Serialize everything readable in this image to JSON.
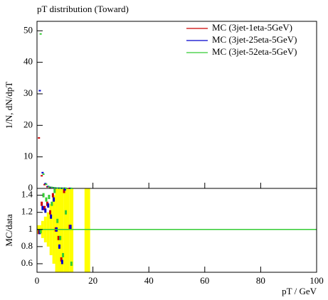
{
  "chart_data": {
    "type": "ratio-line",
    "title": "pT distribution (Toward)",
    "ylabel": "1/N, dN/dpT",
    "ratio_ylabel": "MC/data",
    "xlabel": "pT / GeV",
    "xlim": [
      0,
      100
    ],
    "xticks": [
      0,
      20,
      40,
      60,
      80,
      100
    ],
    "ylim": [
      0,
      53
    ],
    "yticks": [
      0,
      10,
      20,
      30,
      40,
      50
    ],
    "ratio_ylim": [
      0.5,
      1.48
    ],
    "ratio_yticks": [
      0.6,
      0.8,
      1,
      1.2,
      1.4
    ],
    "ratio_reference": 1,
    "legend": "upper right",
    "x": [
      1,
      2,
      3,
      4,
      5,
      6,
      7,
      8,
      9,
      10,
      12
    ],
    "series": [
      {
        "name": "MC (3jet-1eta-5GeV)",
        "color": "#cc0000",
        "values": [
          16,
          4,
          1.2,
          0.5,
          0.3,
          0.2,
          0.1,
          0.08,
          0.05,
          0.04,
          0.02
        ],
        "ratio": [
          0.97,
          1.3,
          1.25,
          1.3,
          1.2,
          1.4,
          1.0,
          0.9,
          0.65,
          1.45,
          1.03
        ]
      },
      {
        "name": "MC (3jet-25eta-5GeV)",
        "color": "#0000cc",
        "values": [
          31,
          5,
          1.5,
          0.6,
          0.3,
          0.2,
          0.1,
          0.08,
          0.05,
          0.04,
          0.02
        ],
        "ratio": [
          0.97,
          1.25,
          1.22,
          1.28,
          1.15,
          1.35,
          1.0,
          0.8,
          0.62,
          1.48,
          1.03
        ]
      },
      {
        "name": "MC (3jet-52eta-5GeV)",
        "color": "#33cc33",
        "values": [
          49,
          4.5,
          1.3,
          0.5,
          0.3,
          0.2,
          0.1,
          0.08,
          0.05,
          0.04,
          0.02
        ],
        "ratio": [
          0.98,
          1.4,
          1.35,
          1.38,
          1.3,
          1.45,
          1.1,
          0.9,
          0.7,
          1.2,
          0.6
        ]
      }
    ],
    "band": {
      "color": "#ffff00",
      "x0": [
        0,
        1.5,
        2.5,
        3.5,
        4.5,
        5.5,
        6.5,
        7.5,
        9.5,
        11.5,
        17
      ],
      "x1": [
        1.5,
        2.5,
        3.5,
        4.5,
        5.5,
        6.5,
        7.5,
        9.5,
        11.5,
        13,
        19
      ],
      "lower": [
        0.95,
        0.9,
        0.85,
        0.8,
        0.7,
        0.6,
        0.4,
        0,
        0,
        0,
        0
      ],
      "upper": [
        1.05,
        1.1,
        1.15,
        1.2,
        1.3,
        1.4,
        1.6,
        2,
        2,
        2,
        2
      ]
    }
  }
}
